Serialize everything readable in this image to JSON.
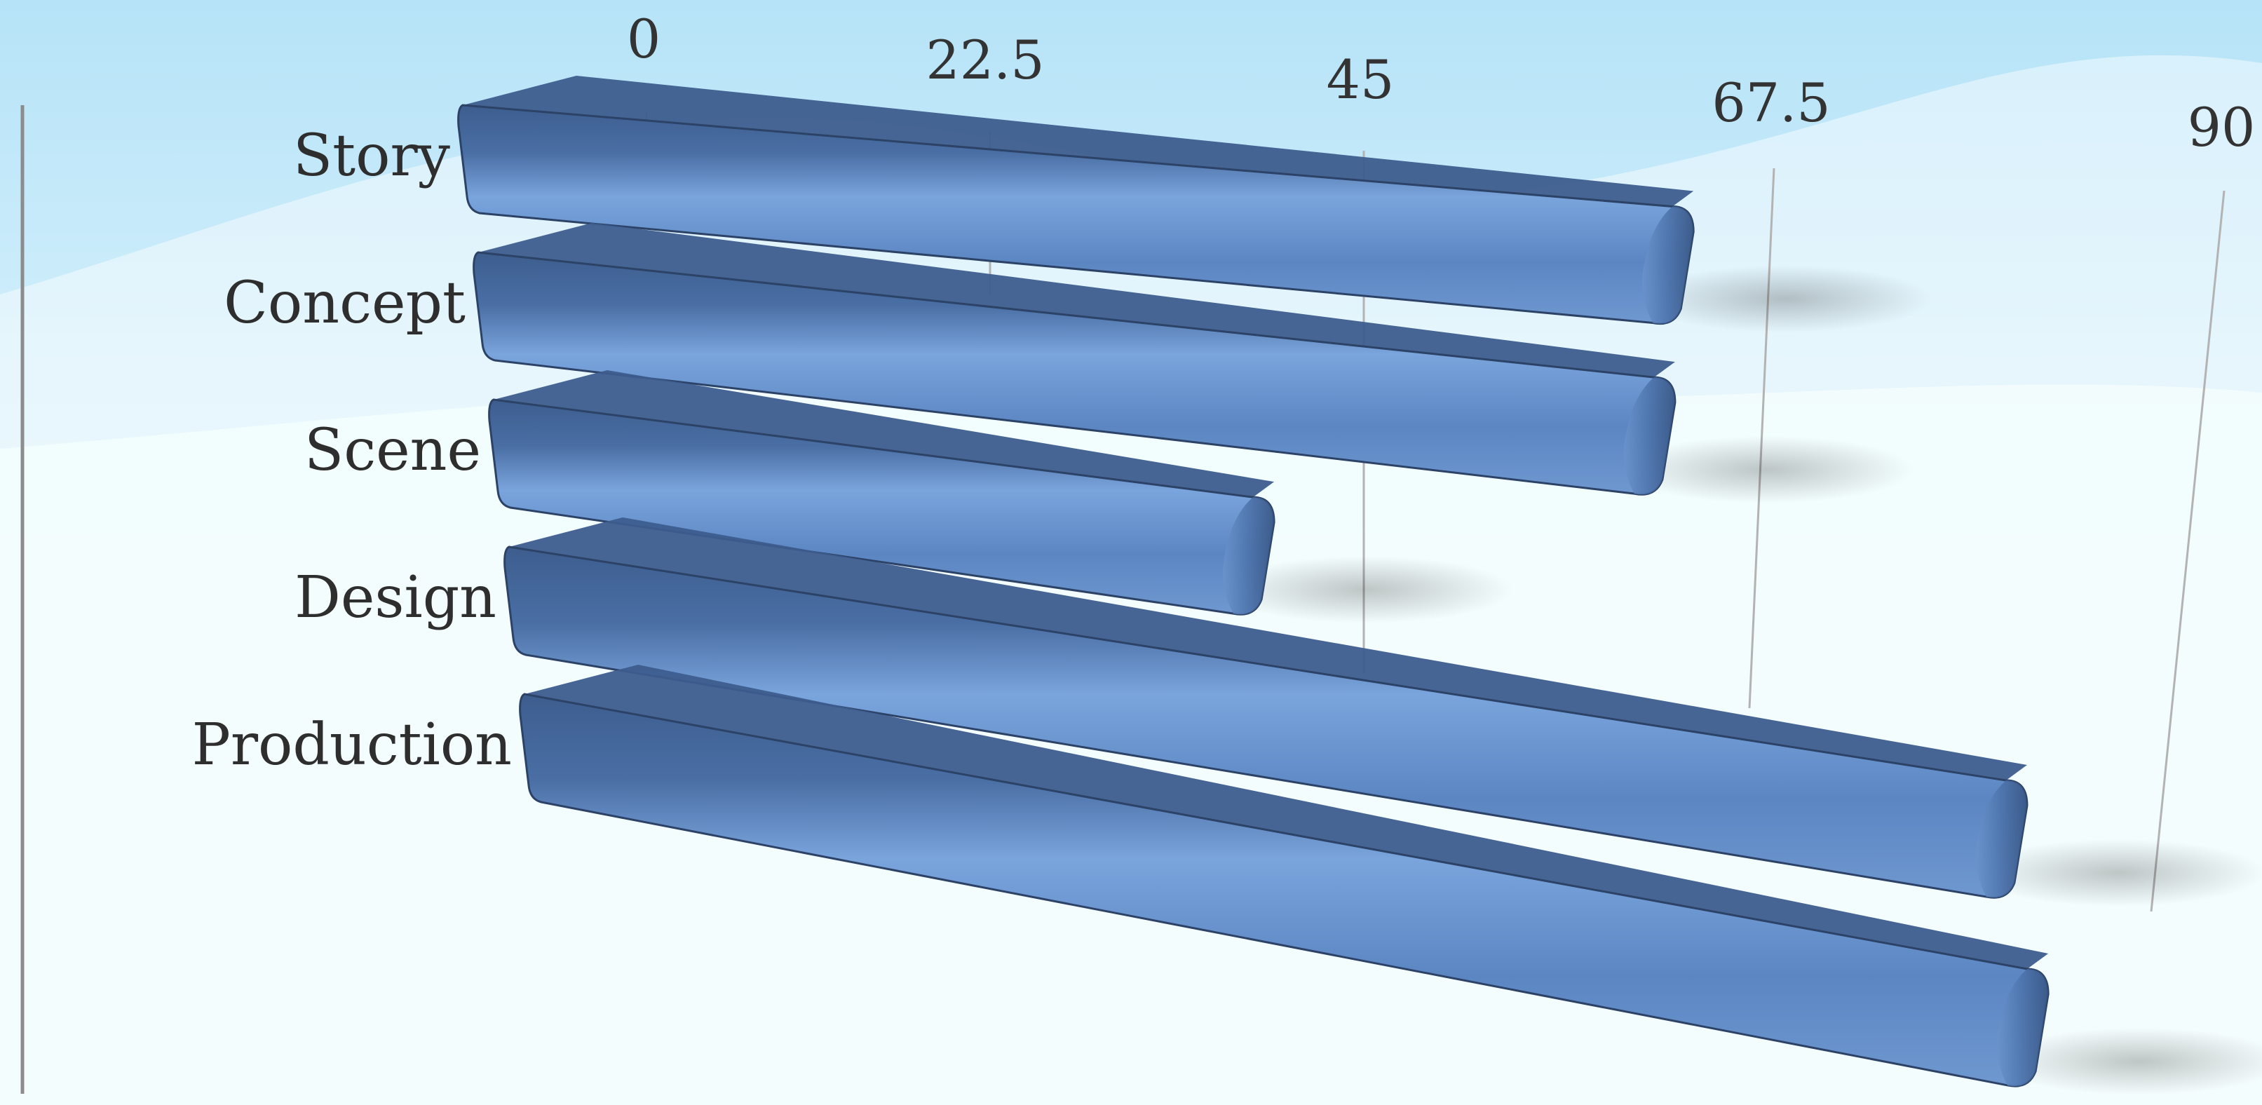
{
  "chart_data": {
    "type": "bar",
    "orientation": "horizontal",
    "style": "3d-perspective",
    "categories": [
      "Story",
      "Concept",
      "Scene",
      "Design",
      "Production"
    ],
    "values": [
      63,
      63,
      42,
      85,
      88
    ],
    "xlim": [
      0,
      90
    ],
    "x_ticks": [
      "0",
      "22.5",
      "45",
      "67.5",
      "90"
    ],
    "grid": true,
    "legend": false,
    "title": "",
    "xlabel": "",
    "ylabel": ""
  },
  "colors": {
    "bar_light": "#7aa4dc",
    "bar_mid": "#5b86c2",
    "bar_dark": "#3d5d8e",
    "bar_edge": "#2c4266",
    "background_top": "#b6e3f8",
    "background_bottom": "#f2fdfd",
    "text": "#333333",
    "gridline": "#b3b3b3",
    "axis_line": "#8c8c8c"
  }
}
